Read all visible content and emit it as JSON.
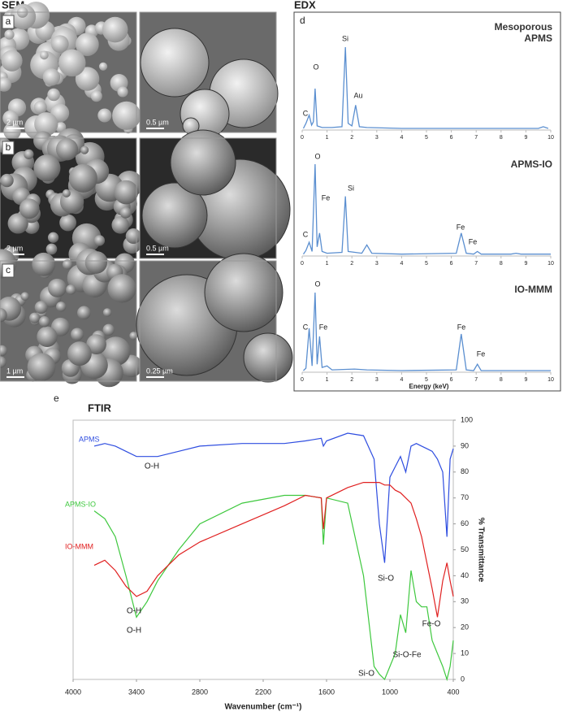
{
  "sem": {
    "title": "SEM",
    "rows": [
      {
        "label": "a",
        "scale_bars": [
          "2 µm",
          "0.5 µm"
        ]
      },
      {
        "label": "b",
        "scale_bars": [
          "2 µm",
          "0.5 µm"
        ]
      },
      {
        "label": "c",
        "scale_bars": [
          "1 µm",
          "0.25 µm"
        ]
      }
    ]
  },
  "edx": {
    "title": "EDX",
    "label": "d",
    "x_label": "Energy (keV)"
  },
  "ftir": {
    "title": "FTIR",
    "label": "e"
  },
  "chart_data": [
    {
      "type": "line",
      "title": "Mesoporous APMS",
      "x": [
        0.05,
        0.15,
        0.28,
        0.38,
        0.45,
        0.52,
        0.6,
        0.8,
        1.2,
        1.6,
        1.74,
        1.85,
        2.0,
        2.15,
        2.3,
        2.6,
        4,
        6,
        8,
        9.5,
        9.7,
        9.9
      ],
      "series": [
        {
          "color": "#5b8fd0",
          "values": [
            2,
            8,
            18,
            6,
            10,
            50,
            5,
            3,
            3,
            4,
            100,
            8,
            5,
            30,
            4,
            3,
            2,
            2,
            2,
            2,
            4,
            2
          ]
        }
      ],
      "annotations": [
        "C",
        "O",
        "Si",
        "Au"
      ],
      "xlim": [
        0,
        10
      ],
      "xticks": [
        0,
        1,
        2,
        3,
        4,
        5,
        6,
        7,
        8,
        9,
        10
      ],
      "ylim": [
        0,
        100
      ]
    },
    {
      "type": "line",
      "title": "APMS-IO",
      "x": [
        0.05,
        0.15,
        0.28,
        0.4,
        0.52,
        0.6,
        0.7,
        0.8,
        1.0,
        1.6,
        1.74,
        1.85,
        2.4,
        2.6,
        2.8,
        4,
        6.2,
        6.4,
        6.6,
        6.9,
        7.05,
        7.2,
        8.4,
        8.6,
        8.8,
        10
      ],
      "series": [
        {
          "color": "#5b8fd0",
          "values": [
            2,
            6,
            15,
            5,
            100,
            10,
            25,
            5,
            3,
            4,
            65,
            5,
            3,
            12,
            3,
            2,
            3,
            25,
            3,
            2,
            5,
            2,
            2,
            3,
            2,
            2
          ]
        }
      ],
      "annotations": [
        "C",
        "O",
        "Fe",
        "Si",
        "Fe",
        "Fe"
      ],
      "xlim": [
        0,
        10
      ],
      "xticks": [
        0,
        1,
        2,
        3,
        4,
        5,
        6,
        7,
        8,
        9,
        10
      ],
      "ylim": [
        0,
        100
      ]
    },
    {
      "type": "line",
      "title": "IO-MMM",
      "x": [
        0.05,
        0.15,
        0.28,
        0.4,
        0.52,
        0.6,
        0.7,
        0.8,
        1.0,
        1.2,
        2.1,
        2.6,
        4,
        6.2,
        6.4,
        6.6,
        6.9,
        7.05,
        7.2,
        8.6,
        10
      ],
      "series": [
        {
          "color": "#5b8fd0",
          "values": [
            2,
            5,
            55,
            8,
            100,
            10,
            45,
            6,
            8,
            3,
            4,
            3,
            2,
            3,
            48,
            3,
            2,
            10,
            2,
            2,
            2
          ]
        }
      ],
      "annotations": [
        "C",
        "O",
        "Fe",
        "Fe",
        "Fe"
      ],
      "xlim": [
        0,
        10
      ],
      "xticks": [
        0,
        1,
        2,
        3,
        4,
        5,
        6,
        7,
        8,
        9,
        10
      ],
      "ylim": [
        0,
        100
      ]
    },
    {
      "type": "line",
      "x_label": "Wavenumber (cm⁻¹)",
      "y_label": "% Transmittance",
      "x": [
        3800,
        3700,
        3600,
        3500,
        3400,
        3300,
        3200,
        3000,
        2800,
        2400,
        2000,
        1800,
        1650,
        1630,
        1600,
        1400,
        1250,
        1150,
        1100,
        1050,
        1000,
        950,
        900,
        850,
        800,
        750,
        700,
        650,
        600,
        550,
        500,
        460,
        430,
        400
      ],
      "series": [
        {
          "name": "APMS",
          "color": "#2e4de0",
          "values": [
            90,
            91,
            90,
            88,
            86,
            86,
            86,
            88,
            90,
            91,
            91,
            92,
            93,
            90,
            92,
            95,
            94,
            85,
            60,
            45,
            78,
            82,
            86,
            80,
            90,
            91,
            90,
            89,
            88,
            85,
            80,
            55,
            85,
            89
          ]
        },
        {
          "name": "APMS-IO",
          "color": "#3ec83e",
          "values": [
            65,
            62,
            55,
            40,
            24,
            30,
            38,
            50,
            60,
            68,
            71,
            71,
            70,
            52,
            70,
            68,
            40,
            5,
            2,
            0,
            5,
            10,
            25,
            18,
            42,
            30,
            28,
            28,
            15,
            10,
            5,
            0,
            5,
            15
          ]
        },
        {
          "name": "IO-MMM",
          "color": "#e02020",
          "values": [
            44,
            46,
            42,
            36,
            32,
            34,
            40,
            48,
            53,
            60,
            67,
            71,
            70,
            58,
            70,
            74,
            76,
            76,
            76,
            75,
            75,
            73,
            72,
            70,
            68,
            62,
            55,
            45,
            35,
            24,
            38,
            45,
            38,
            32
          ]
        }
      ],
      "annotations": [
        "O-H",
        "O-H",
        "O-H",
        "Si-O",
        "Fe-O",
        "Si-O-Fe",
        "Si-O"
      ],
      "xlim": [
        4000,
        400
      ],
      "xticks": [
        4000,
        3400,
        2800,
        2200,
        1600,
        1000,
        400
      ],
      "ylim": [
        0,
        100
      ],
      "yticks": [
        0,
        10,
        20,
        30,
        40,
        50,
        60,
        70,
        80,
        90,
        100
      ]
    }
  ]
}
